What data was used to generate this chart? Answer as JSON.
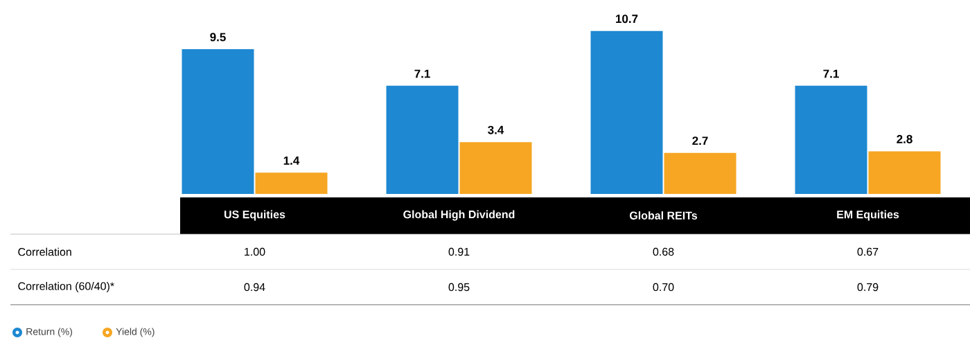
{
  "chart_data": {
    "type": "bar",
    "categories": [
      "US Equities",
      "Global High Dividend",
      "Global REITs",
      "EM Equities"
    ],
    "series": [
      {
        "name": "Return (%)",
        "color": "#1e88d2",
        "values": [
          9.5,
          7.1,
          10.7,
          7.1
        ]
      },
      {
        "name": "Yield (%)",
        "color": "#f6a623",
        "values": [
          1.4,
          3.4,
          2.7,
          2.8
        ]
      }
    ],
    "data_labels": true,
    "legend": "bottom left",
    "annotations": [
      "Correlation",
      "1.00",
      "0.91",
      "0.68",
      "0.67",
      "Correlation (60/40)*",
      "0.94",
      "0.95",
      "0.70",
      "0.79"
    ]
  }
}
